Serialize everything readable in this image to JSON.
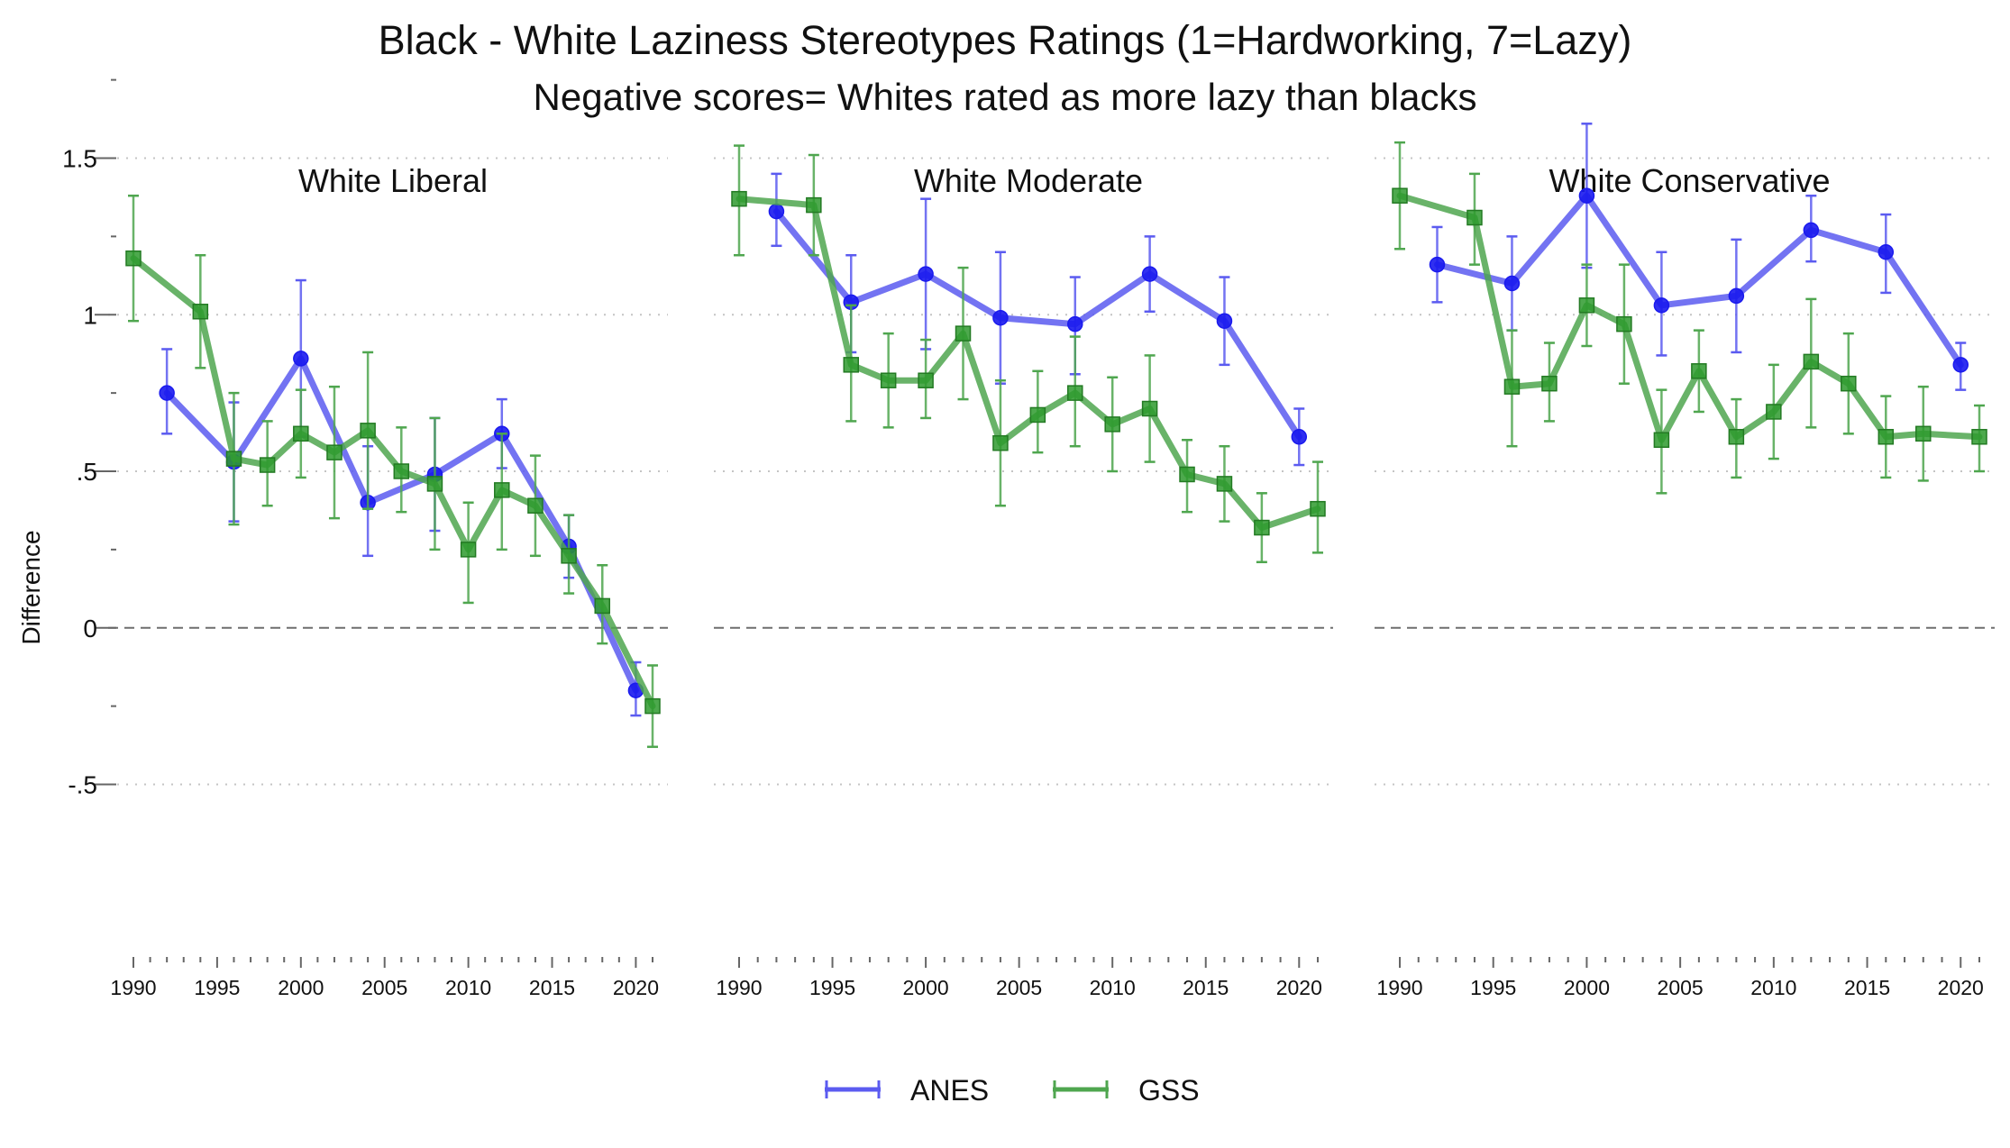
{
  "chart_data": {
    "type": "line",
    "title": "Black - White Laziness Stereotypes Ratings (1=Hardworking, 7=Lazy)",
    "subtitle": "Negative scores= Whites rated as more lazy than blacks",
    "ylabel": "Difference",
    "ylim": [
      -0.5,
      1.75
    ],
    "yticks": [
      -0.5,
      0,
      0.5,
      1,
      1.5
    ],
    "ytick_labels": [
      "-.5",
      "0",
      ".5",
      "1",
      "1.5"
    ],
    "xlim": [
      1990,
      2021
    ],
    "xticks": [
      1990,
      1995,
      2000,
      2005,
      2010,
      2015,
      2020
    ],
    "grid": "horizontal dotted at major y ticks",
    "reference_line": {
      "y": 0,
      "style": "dashed"
    },
    "legend": {
      "placement": "bottom-center",
      "entries": [
        "ANES",
        "GSS"
      ]
    },
    "colors": {
      "ANES": "#5b5bf0",
      "GSS": "#4fa64f",
      "ANES_marker": "#1a1aee",
      "GSS_marker": "#2e9a2e"
    },
    "panels": [
      {
        "title": "White Liberal",
        "series": [
          {
            "name": "ANES",
            "points": [
              {
                "x": 1992,
                "y": 0.75,
                "lo": 0.62,
                "hi": 0.89
              },
              {
                "x": 1996,
                "y": 0.53,
                "lo": 0.34,
                "hi": 0.72
              },
              {
                "x": 2000,
                "y": 0.86,
                "lo": 0.61,
                "hi": 1.11
              },
              {
                "x": 2004,
                "y": 0.4,
                "lo": 0.23,
                "hi": 0.58
              },
              {
                "x": 2008,
                "y": 0.49,
                "lo": 0.31,
                "hi": 0.67
              },
              {
                "x": 2012,
                "y": 0.62,
                "lo": 0.51,
                "hi": 0.73
              },
              {
                "x": 2016,
                "y": 0.26,
                "lo": 0.16,
                "hi": 0.36
              },
              {
                "x": 2020,
                "y": -0.2,
                "lo": -0.28,
                "hi": -0.11
              }
            ]
          },
          {
            "name": "GSS",
            "points": [
              {
                "x": 1990,
                "y": 1.18,
                "lo": 0.98,
                "hi": 1.38
              },
              {
                "x": 1994,
                "y": 1.01,
                "lo": 0.83,
                "hi": 1.19
              },
              {
                "x": 1996,
                "y": 0.54,
                "lo": 0.33,
                "hi": 0.75
              },
              {
                "x": 1998,
                "y": 0.52,
                "lo": 0.39,
                "hi": 0.66
              },
              {
                "x": 2000,
                "y": 0.62,
                "lo": 0.48,
                "hi": 0.76
              },
              {
                "x": 2002,
                "y": 0.56,
                "lo": 0.35,
                "hi": 0.77
              },
              {
                "x": 2004,
                "y": 0.63,
                "lo": 0.38,
                "hi": 0.88
              },
              {
                "x": 2006,
                "y": 0.5,
                "lo": 0.37,
                "hi": 0.64
              },
              {
                "x": 2008,
                "y": 0.46,
                "lo": 0.25,
                "hi": 0.67
              },
              {
                "x": 2010,
                "y": 0.25,
                "lo": 0.08,
                "hi": 0.4
              },
              {
                "x": 2012,
                "y": 0.44,
                "lo": 0.25,
                "hi": 0.62
              },
              {
                "x": 2014,
                "y": 0.39,
                "lo": 0.23,
                "hi": 0.55
              },
              {
                "x": 2016,
                "y": 0.23,
                "lo": 0.11,
                "hi": 0.36
              },
              {
                "x": 2018,
                "y": 0.07,
                "lo": -0.05,
                "hi": 0.2
              },
              {
                "x": 2021,
                "y": -0.25,
                "lo": -0.38,
                "hi": -0.12
              }
            ]
          }
        ]
      },
      {
        "title": "White Moderate",
        "series": [
          {
            "name": "ANES",
            "points": [
              {
                "x": 1992,
                "y": 1.33,
                "lo": 1.22,
                "hi": 1.45
              },
              {
                "x": 1996,
                "y": 1.04,
                "lo": 0.88,
                "hi": 1.19
              },
              {
                "x": 2000,
                "y": 1.13,
                "lo": 0.89,
                "hi": 1.37
              },
              {
                "x": 2004,
                "y": 0.99,
                "lo": 0.78,
                "hi": 1.2
              },
              {
                "x": 2008,
                "y": 0.97,
                "lo": 0.81,
                "hi": 1.12
              },
              {
                "x": 2012,
                "y": 1.13,
                "lo": 1.01,
                "hi": 1.25
              },
              {
                "x": 2016,
                "y": 0.98,
                "lo": 0.84,
                "hi": 1.12
              },
              {
                "x": 2020,
                "y": 0.61,
                "lo": 0.52,
                "hi": 0.7
              }
            ]
          },
          {
            "name": "GSS",
            "points": [
              {
                "x": 1990,
                "y": 1.37,
                "lo": 1.19,
                "hi": 1.54
              },
              {
                "x": 1994,
                "y": 1.35,
                "lo": 1.19,
                "hi": 1.51
              },
              {
                "x": 1996,
                "y": 0.84,
                "lo": 0.66,
                "hi": 1.03
              },
              {
                "x": 1998,
                "y": 0.79,
                "lo": 0.64,
                "hi": 0.94
              },
              {
                "x": 2000,
                "y": 0.79,
                "lo": 0.67,
                "hi": 0.92
              },
              {
                "x": 2002,
                "y": 0.94,
                "lo": 0.73,
                "hi": 1.15
              },
              {
                "x": 2004,
                "y": 0.59,
                "lo": 0.39,
                "hi": 0.79
              },
              {
                "x": 2006,
                "y": 0.68,
                "lo": 0.56,
                "hi": 0.82
              },
              {
                "x": 2008,
                "y": 0.75,
                "lo": 0.58,
                "hi": 0.93
              },
              {
                "x": 2010,
                "y": 0.65,
                "lo": 0.5,
                "hi": 0.8
              },
              {
                "x": 2012,
                "y": 0.7,
                "lo": 0.53,
                "hi": 0.87
              },
              {
                "x": 2014,
                "y": 0.49,
                "lo": 0.37,
                "hi": 0.6
              },
              {
                "x": 2016,
                "y": 0.46,
                "lo": 0.34,
                "hi": 0.58
              },
              {
                "x": 2018,
                "y": 0.32,
                "lo": 0.21,
                "hi": 0.43
              },
              {
                "x": 2021,
                "y": 0.38,
                "lo": 0.24,
                "hi": 0.53
              }
            ]
          }
        ]
      },
      {
        "title": "White Conservative",
        "series": [
          {
            "name": "ANES",
            "points": [
              {
                "x": 1992,
                "y": 1.16,
                "lo": 1.04,
                "hi": 1.28
              },
              {
                "x": 1996,
                "y": 1.1,
                "lo": 0.95,
                "hi": 1.25
              },
              {
                "x": 2000,
                "y": 1.38,
                "lo": 1.15,
                "hi": 1.61
              },
              {
                "x": 2004,
                "y": 1.03,
                "lo": 0.87,
                "hi": 1.2
              },
              {
                "x": 2008,
                "y": 1.06,
                "lo": 0.88,
                "hi": 1.24
              },
              {
                "x": 2012,
                "y": 1.27,
                "lo": 1.17,
                "hi": 1.38
              },
              {
                "x": 2016,
                "y": 1.2,
                "lo": 1.07,
                "hi": 1.32
              },
              {
                "x": 2020,
                "y": 0.84,
                "lo": 0.76,
                "hi": 0.91
              }
            ]
          },
          {
            "name": "GSS",
            "points": [
              {
                "x": 1990,
                "y": 1.38,
                "lo": 1.21,
                "hi": 1.55
              },
              {
                "x": 1994,
                "y": 1.31,
                "lo": 1.16,
                "hi": 1.45
              },
              {
                "x": 1996,
                "y": 0.77,
                "lo": 0.58,
                "hi": 0.95
              },
              {
                "x": 1998,
                "y": 0.78,
                "lo": 0.66,
                "hi": 0.91
              },
              {
                "x": 2000,
                "y": 1.03,
                "lo": 0.9,
                "hi": 1.16
              },
              {
                "x": 2002,
                "y": 0.97,
                "lo": 0.78,
                "hi": 1.16
              },
              {
                "x": 2004,
                "y": 0.6,
                "lo": 0.43,
                "hi": 0.76
              },
              {
                "x": 2006,
                "y": 0.82,
                "lo": 0.69,
                "hi": 0.95
              },
              {
                "x": 2008,
                "y": 0.61,
                "lo": 0.48,
                "hi": 0.73
              },
              {
                "x": 2010,
                "y": 0.69,
                "lo": 0.54,
                "hi": 0.84
              },
              {
                "x": 2012,
                "y": 0.85,
                "lo": 0.64,
                "hi": 1.05
              },
              {
                "x": 2014,
                "y": 0.78,
                "lo": 0.62,
                "hi": 0.94
              },
              {
                "x": 2016,
                "y": 0.61,
                "lo": 0.48,
                "hi": 0.74
              },
              {
                "x": 2018,
                "y": 0.62,
                "lo": 0.47,
                "hi": 0.77
              },
              {
                "x": 2021,
                "y": 0.61,
                "lo": 0.5,
                "hi": 0.71
              }
            ]
          }
        ]
      }
    ]
  }
}
